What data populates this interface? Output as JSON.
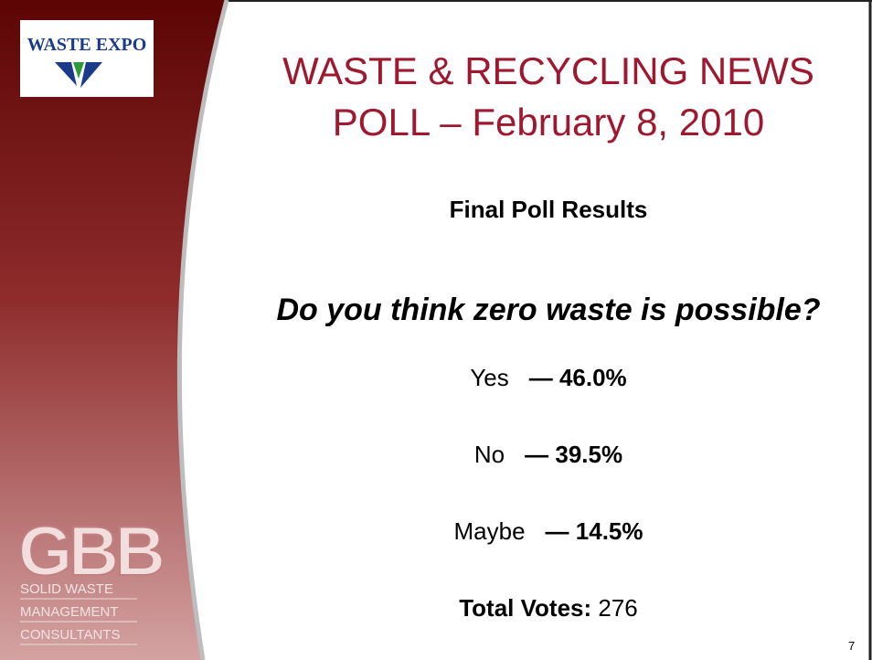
{
  "logo": {
    "name": "WASTE EXPO"
  },
  "title": {
    "line1": "WASTE & RECYCLING NEWS",
    "line2": "POLL – February 8, 2010"
  },
  "subtitle": "Final Poll Results",
  "question": "Do you think zero waste is possible?",
  "results": [
    {
      "label": "Yes",
      "value": "— 46.0%"
    },
    {
      "label": "No",
      "value": "— 39.5%"
    },
    {
      "label": "Maybe",
      "value": "— 14.5%"
    }
  ],
  "total": {
    "label": "Total Votes:",
    "value": "276"
  },
  "brand": {
    "name": "GBB",
    "line1": "SOLID WASTE",
    "line2": "MANAGEMENT",
    "line3": "CONSULTANTS"
  },
  "page_number": "7"
}
